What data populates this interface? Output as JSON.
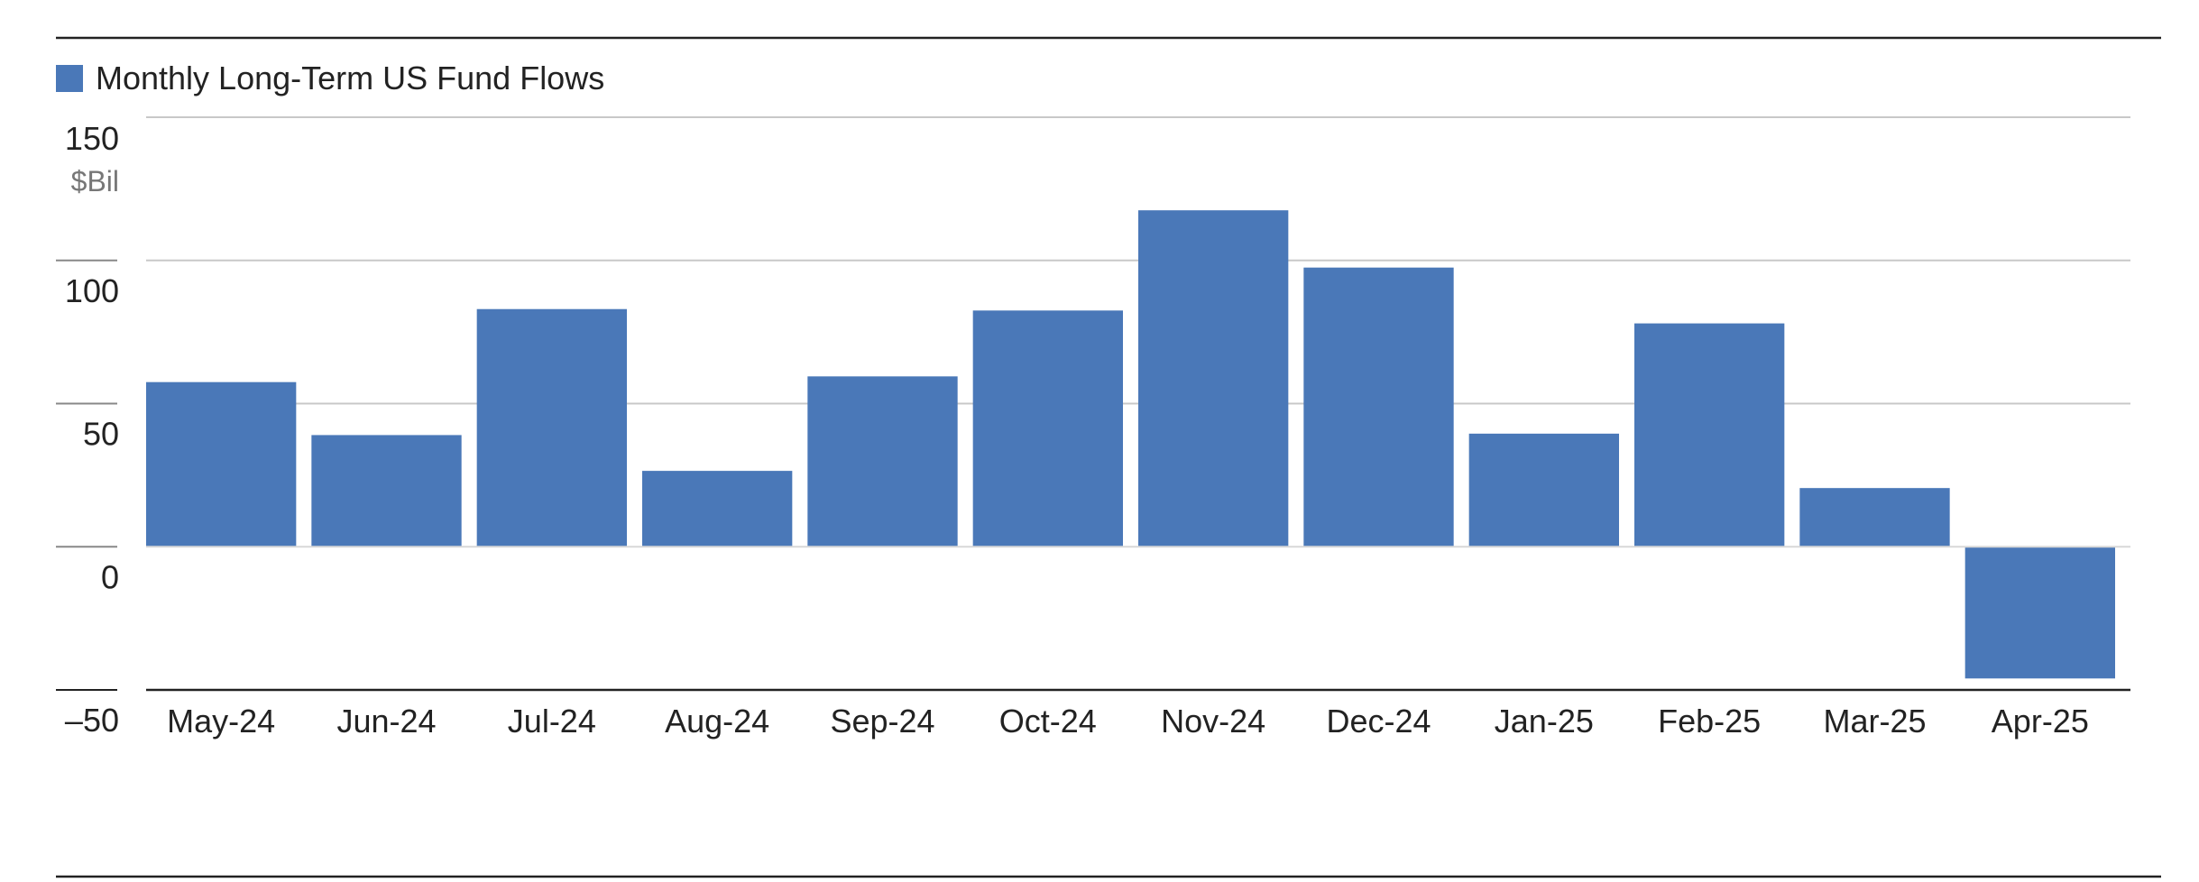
{
  "colors": {
    "bar": "#4A78B8",
    "grid": "#c8c8c8",
    "rule": "#222222"
  },
  "legend": {
    "label": "Monthly Long-Term US Fund Flows",
    "swatch_color": "#4A78B8"
  },
  "chart_data": {
    "type": "bar",
    "title": "",
    "xlabel": "",
    "ylabel": "",
    "y_unit": "$Bil",
    "ylim": [
      -50,
      150
    ],
    "yticks": [
      150,
      100,
      50,
      0,
      -50
    ],
    "ytick_labels": [
      "150",
      "100",
      "50",
      "0",
      "–50"
    ],
    "grid": true,
    "legend_position": "top-left",
    "categories": [
      "May-24",
      "Jun-24",
      "Jul-24",
      "Aug-24",
      "Sep-24",
      "Oct-24",
      "Nov-24",
      "Dec-24",
      "Jan-25",
      "Feb-25",
      "Mar-25",
      "Apr-25"
    ],
    "series": [
      {
        "name": "Monthly Long-Term US Fund Flows",
        "values": [
          57.5,
          39,
          83,
          26.5,
          59.5,
          82.5,
          117.5,
          97.5,
          39.5,
          78,
          20.5,
          -46
        ]
      }
    ]
  }
}
